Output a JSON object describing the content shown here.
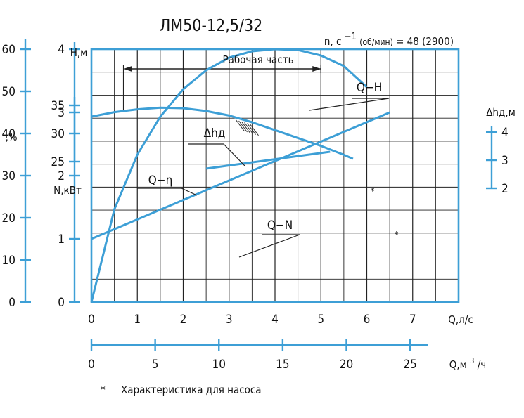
{
  "chart_data": {
    "type": "line",
    "title": "ЛМ50-12,5/32",
    "speed_note": {
      "prefix": "n, с",
      "exponent": "−1",
      "unit_paren": "(об/мин)",
      "value": "= 48 (2900)"
    },
    "working_range_label": "Рабочая часть",
    "working_range": [
      0.7,
      5.0
    ],
    "x_axis": {
      "label": "Q,л/с",
      "ticks": [
        "0",
        "1",
        "2",
        "3",
        "4",
        "5",
        "6",
        "7"
      ],
      "range": [
        0,
        8
      ]
    },
    "x2_axis": {
      "label_base": "Q,м",
      "label_sup": "3",
      "label_tail": "/ч",
      "ticks": [
        "0",
        "5",
        "10",
        "15",
        "20",
        "25"
      ],
      "range": [
        0,
        28.8
      ]
    },
    "h_axis": {
      "label": "H,м",
      "ticks": [
        "25",
        "30",
        "35"
      ],
      "range": [
        0,
        45
      ]
    },
    "eta_axis": {
      "label": ",%",
      "ticks": [
        "0",
        "10",
        "20",
        "30",
        "40",
        "50",
        "60"
      ],
      "range": [
        0,
        60
      ]
    },
    "n_axis": {
      "label": "N,кВт",
      "ticks": [
        "0",
        "1",
        "2",
        "3",
        "4"
      ],
      "range": [
        0,
        4
      ]
    },
    "dh_axis": {
      "label": "Δhд,м",
      "ticks": [
        "2",
        "3",
        "4"
      ],
      "range": [
        2,
        4
      ]
    },
    "series": [
      {
        "name": "Q−H",
        "axis": "h",
        "x": [
          0,
          0.5,
          1.0,
          1.5,
          2.0,
          2.5,
          3.0,
          3.5,
          4.0,
          4.5,
          5.0,
          5.5,
          5.7
        ],
        "y": [
          33,
          33.8,
          34.3,
          34.6,
          34.5,
          34,
          33.2,
          32,
          30.6,
          29.2,
          27.8,
          26.2,
          25.5
        ]
      },
      {
        "name": "Δhд",
        "axis": "dh",
        "x": [
          2.5,
          5.2
        ],
        "y": [
          2.7,
          3.3
        ]
      },
      {
        "name": "Q−η",
        "axis": "eta",
        "x": [
          0,
          0.5,
          1.0,
          1.5,
          2.0,
          2.5,
          3.0,
          3.5,
          4.0,
          4.5,
          5.0,
          5.5,
          6.0
        ],
        "y": [
          0,
          22,
          35,
          44,
          50.5,
          55,
          58,
          59.5,
          60,
          59.8,
          58.5,
          56,
          51
        ]
      },
      {
        "name": "Q−N",
        "axis": "n",
        "x": [
          0,
          6.5
        ],
        "y": [
          1.0,
          3.0
        ]
      }
    ],
    "pump_mark": "*",
    "footnote": {
      "mark": "*",
      "text": "Характеристика для насоса"
    },
    "grid": true,
    "line_color": "#3d9fd6"
  }
}
